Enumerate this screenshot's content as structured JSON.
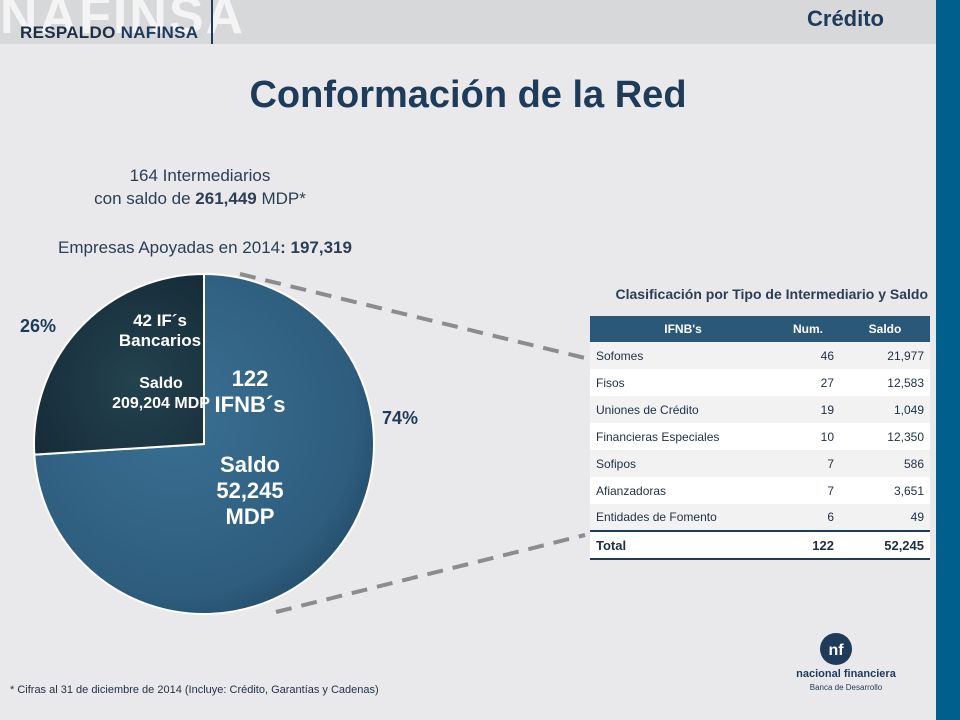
{
  "header": {
    "brand_watermark": "NAFINSA",
    "brand_sub_prefix": "RESPALDO ",
    "brand_sub_strong": "NAFINSA",
    "section": "Crédito"
  },
  "title": "Conformación de la Red",
  "summary": {
    "line1": "164 Intermediarios",
    "line2_prefix": "con saldo de ",
    "line2_value": "261,449",
    "line2_suffix": " MDP*",
    "empresas_prefix": "Empresas Apoyadas en 2014",
    "empresas_colon": ":",
    "empresas_value": " 197,319"
  },
  "chart_data": {
    "type": "pie",
    "slices": [
      {
        "name": "IFNB´s",
        "percent": 74
      },
      {
        "name": "IF´s Bancarios",
        "percent": 26
      }
    ]
  },
  "pie": {
    "pct_bancarios": "26%",
    "pct_ifnb": "74%",
    "bancarios_line1": "42 IF´s",
    "bancarios_line2": "Bancarios",
    "bancarios_saldo_line1": "Saldo",
    "bancarios_saldo_line2": "209,204 MDP",
    "ifnb_line1": "122",
    "ifnb_line2": "IFNB´s",
    "ifnb_saldo_line1": "Saldo",
    "ifnb_saldo_line2": "52,245",
    "ifnb_saldo_line3": "MDP",
    "colors": {
      "ifnb": "#2e5d7d",
      "bancarios": "#1e3746"
    }
  },
  "table": {
    "caption": "Clasificación por Tipo de Intermediario y Saldo",
    "headers": [
      "IFNB's",
      "Num.",
      "Saldo"
    ],
    "rows": [
      [
        "Sofomes",
        "46",
        "21,977"
      ],
      [
        "Fisos",
        "27",
        "12,583"
      ],
      [
        "Uniones de Crédito",
        "19",
        "1,049"
      ],
      [
        "Financieras Especiales",
        "10",
        "12,350"
      ],
      [
        "Sofipos",
        "7",
        "586"
      ],
      [
        "Afianzadoras",
        "7",
        "3,651"
      ],
      [
        "Entidades de Fomento",
        "6",
        "49"
      ]
    ],
    "total": [
      "Total",
      "122",
      "52,245"
    ]
  },
  "footnote": "* Cifras al 31 de diciembre de 2014 (Incluye: Crédito, Garantías y Cadenas)",
  "logo": {
    "name": "nacional financiera",
    "sub": "Banca de Desarrollo",
    "icon": "nf-logo-icon"
  },
  "colors": {
    "accent": "#005f8c",
    "title": "#1f3b5a",
    "table_header": "#2a5878"
  }
}
